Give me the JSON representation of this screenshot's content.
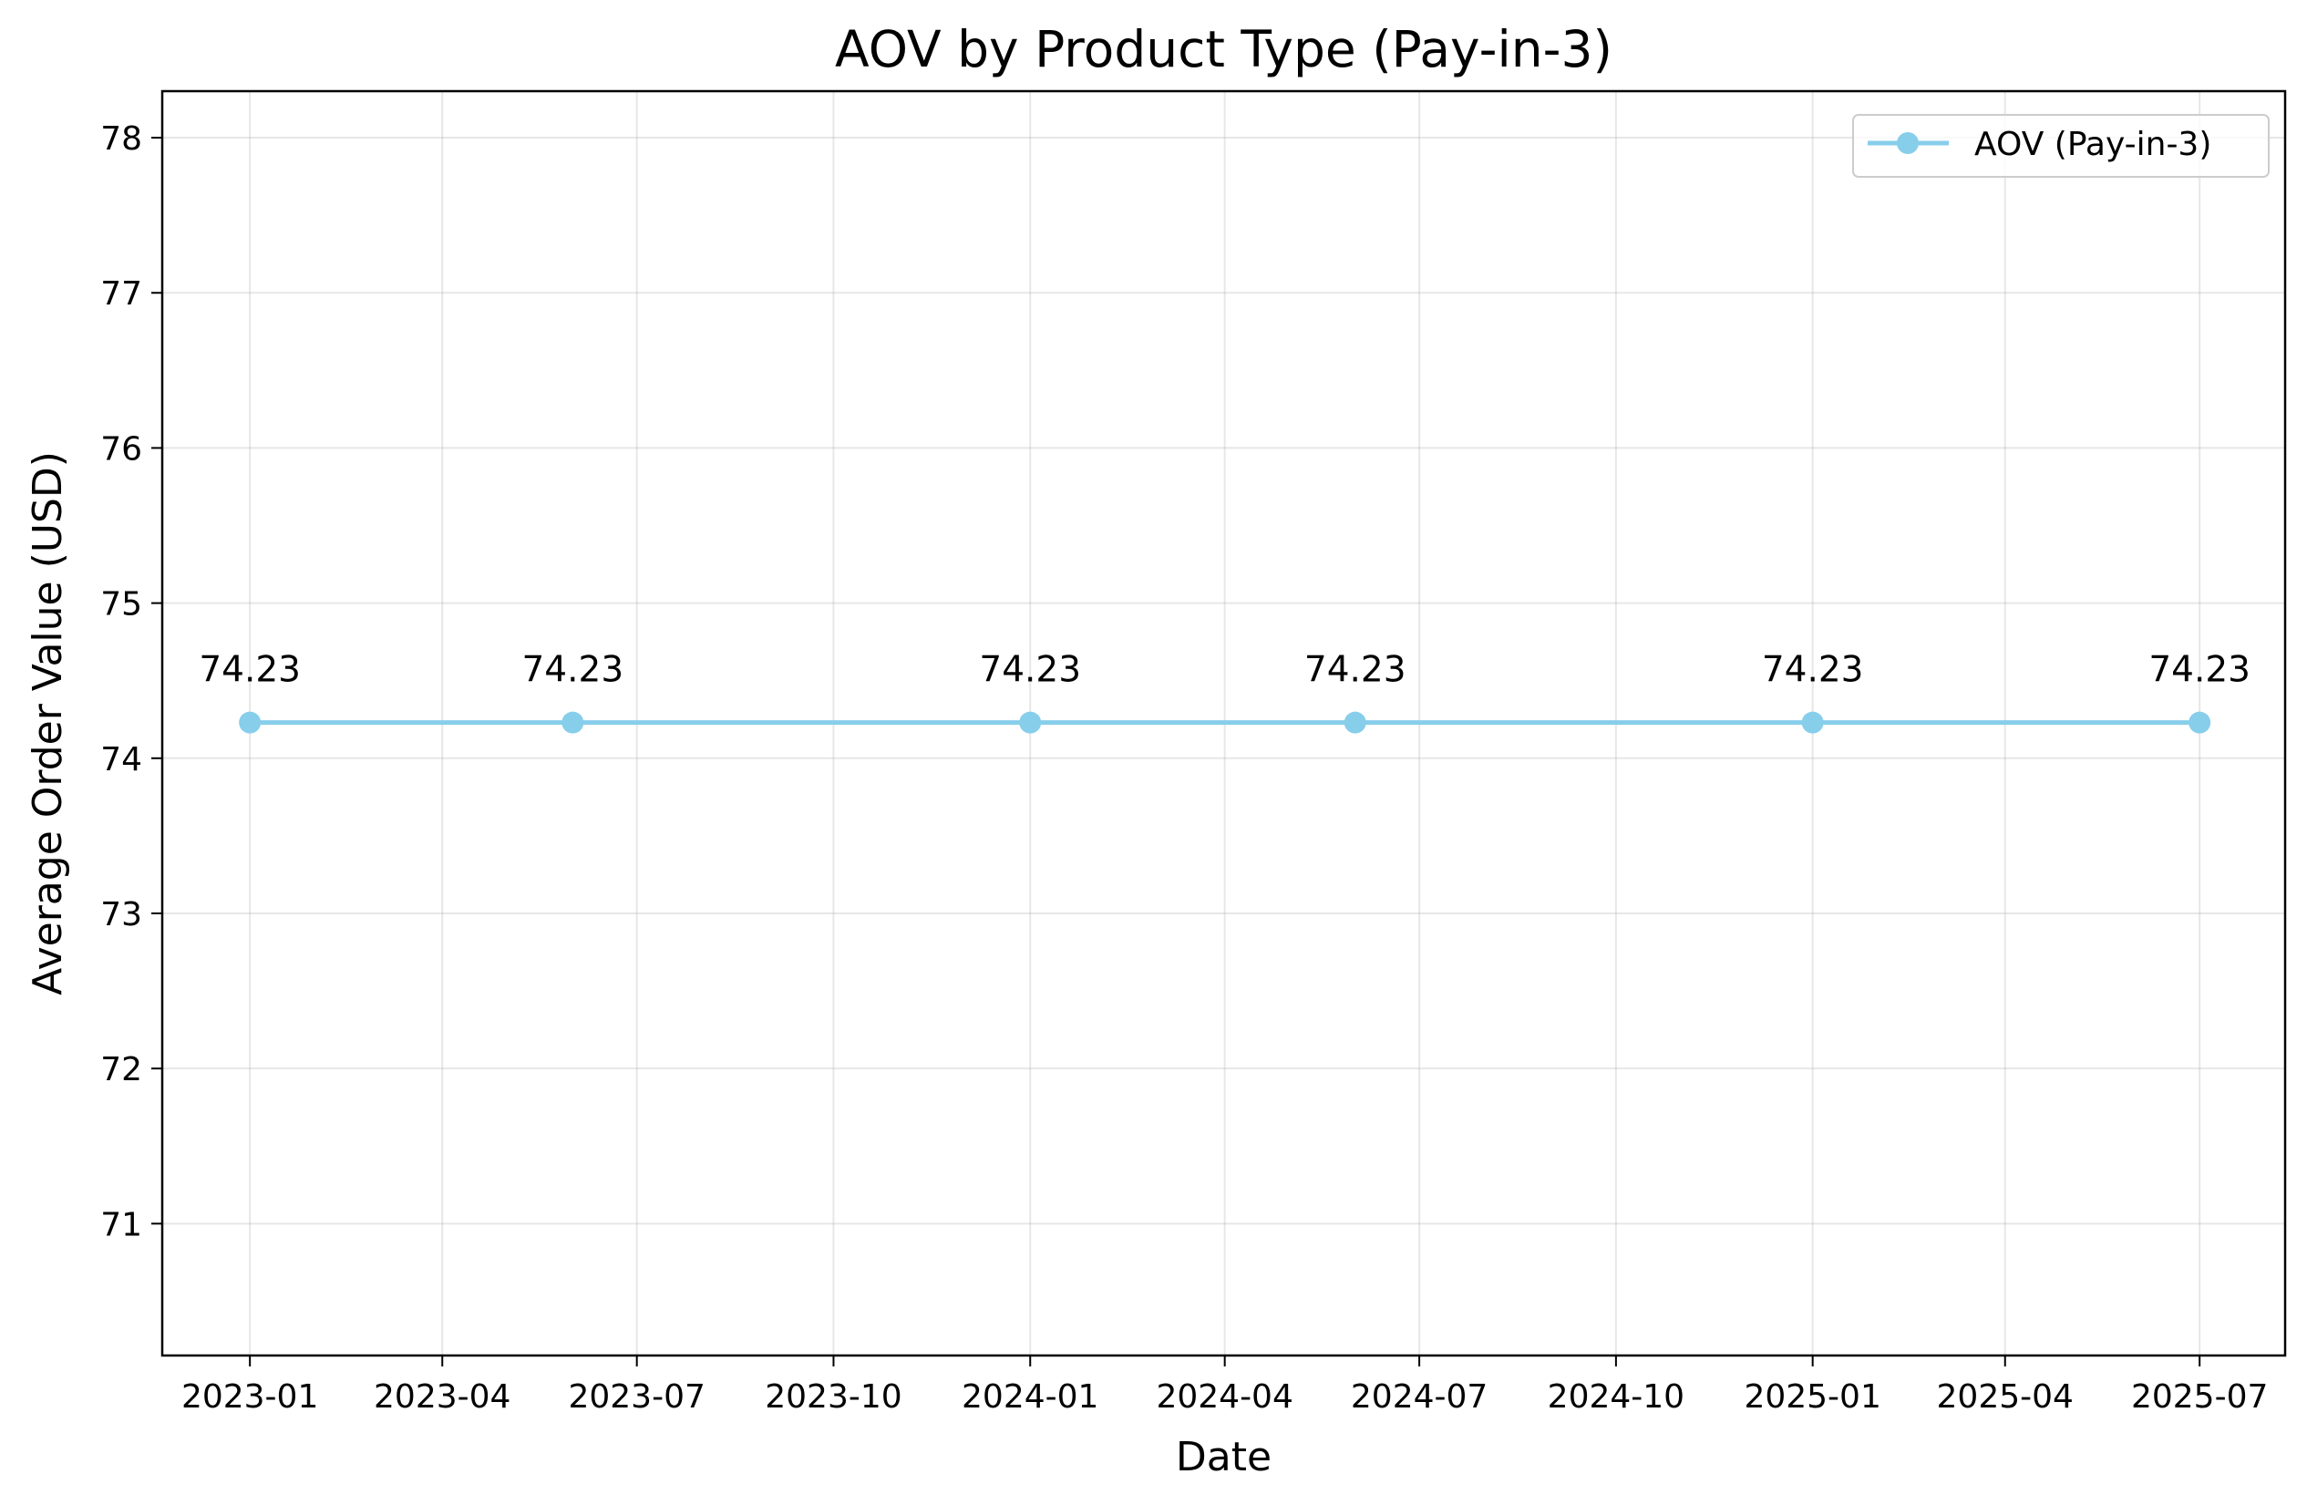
{
  "chart_data": {
    "type": "line",
    "title": "AOV by Product Type (Pay-in-3)",
    "xlabel": "Date",
    "ylabel": "Average Order Value (USD)",
    "x_is_date": true,
    "xlim": [
      "2022-11-21",
      "2025-08-10"
    ],
    "ylim": [
      70.15,
      78.3
    ],
    "x_ticks": [
      "2023-01",
      "2023-04",
      "2023-07",
      "2023-10",
      "2024-01",
      "2024-04",
      "2024-07",
      "2024-10",
      "2025-01",
      "2025-04",
      "2025-07"
    ],
    "y_ticks": [
      71,
      72,
      73,
      74,
      75,
      76,
      77,
      78
    ],
    "grid": true,
    "legend_position": "top-right",
    "series": [
      {
        "name": "AOV (Pay-in-3)",
        "color": "#87ceeb",
        "marker": "circle",
        "x": [
          "2023-01-01",
          "2023-06-01",
          "2024-01-01",
          "2024-06-01",
          "2025-01-01",
          "2025-07-01"
        ],
        "y": [
          74.23,
          74.23,
          74.23,
          74.23,
          74.23,
          74.23
        ],
        "data_labels": [
          "74.23",
          "74.23",
          "74.23",
          "74.23",
          "74.23",
          "74.23"
        ]
      }
    ]
  }
}
